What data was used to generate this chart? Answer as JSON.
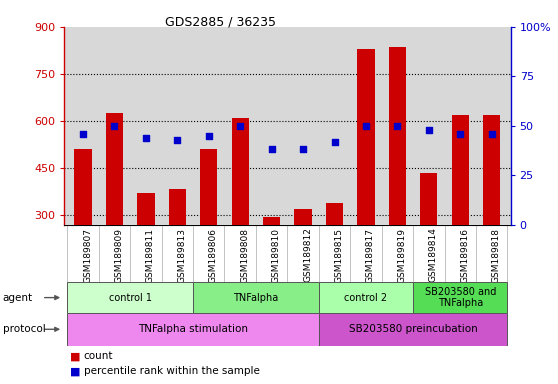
{
  "title": "GDS2885 / 36235",
  "samples": [
    "GSM189807",
    "GSM189809",
    "GSM189811",
    "GSM189813",
    "GSM189806",
    "GSM189808",
    "GSM189810",
    "GSM189812",
    "GSM189815",
    "GSM189817",
    "GSM189819",
    "GSM189814",
    "GSM189816",
    "GSM189818"
  ],
  "counts": [
    510,
    625,
    370,
    385,
    510,
    610,
    295,
    320,
    340,
    830,
    835,
    435,
    620,
    620
  ],
  "percentile_ranks": [
    46,
    50,
    44,
    43,
    45,
    50,
    38,
    38,
    42,
    50,
    50,
    48,
    46,
    46
  ],
  "ylim_left": [
    270,
    900
  ],
  "ylim_right": [
    0,
    100
  ],
  "yticks_left": [
    300,
    450,
    600,
    750,
    900
  ],
  "yticks_right": [
    0,
    25,
    50,
    75,
    100
  ],
  "bar_color": "#cc0000",
  "dot_color": "#0000cc",
  "background_color": "#ffffff",
  "plot_bg_color": "#d8d8d8",
  "agent_groups": [
    {
      "label": "control 1",
      "start": 0,
      "end": 3,
      "color": "#ccffcc"
    },
    {
      "label": "TNFalpha",
      "start": 4,
      "end": 7,
      "color": "#88ee88"
    },
    {
      "label": "control 2",
      "start": 8,
      "end": 10,
      "color": "#aaffaa"
    },
    {
      "label": "SB203580 and\nTNFalpha",
      "start": 11,
      "end": 13,
      "color": "#55dd55"
    }
  ],
  "protocol_groups": [
    {
      "label": "TNFalpha stimulation",
      "start": 0,
      "end": 7,
      "color": "#ee88ee"
    },
    {
      "label": "SB203580 preincubation",
      "start": 8,
      "end": 13,
      "color": "#cc55cc"
    }
  ],
  "legend_count_color": "#cc0000",
  "legend_pct_color": "#0000cc",
  "gridline_ticks": [
    300,
    450,
    600,
    750
  ]
}
